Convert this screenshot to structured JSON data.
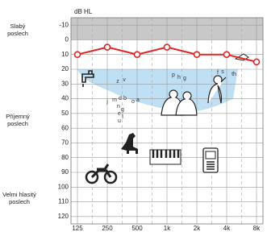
{
  "chart_data": {
    "type": "line",
    "y_axis_label": "dB HL",
    "region_labels": [
      "Slabý",
      "poslech",
      "Příjemný",
      "poslech",
      "Velmi hlasitý",
      "poslech"
    ],
    "categories": [
      "125",
      "250",
      "500",
      "1k",
      "2k",
      "4k",
      "8k"
    ],
    "series": [
      {
        "color": "#e02424",
        "values": [
          10,
          5,
          10,
          5,
          10,
          10,
          15
        ]
      }
    ],
    "ylim": [
      -15,
      125
    ],
    "yticks": [
      -10,
      0,
      10,
      20,
      30,
      40,
      50,
      60,
      70,
      80,
      90,
      100,
      110,
      120
    ],
    "shaded_above": 0,
    "grid": true,
    "speech_sounds": [
      "z",
      "v",
      "j",
      "m",
      "d",
      "b",
      "n",
      "g",
      "e",
      "l",
      "u",
      "o",
      "a",
      "p",
      "h",
      "g",
      "f",
      "s",
      "th"
    ]
  }
}
